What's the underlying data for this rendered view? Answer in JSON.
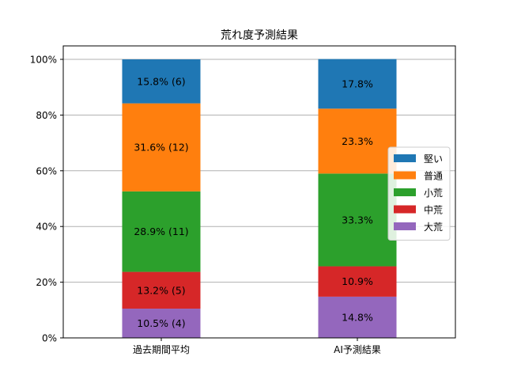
{
  "chart_data": {
    "type": "bar",
    "stacked": true,
    "title": "荒れ度予測結果",
    "xlabel": "",
    "ylabel": "",
    "ylim": [
      0,
      100
    ],
    "y_ticks": [
      "0%",
      "20%",
      "40%",
      "60%",
      "80%",
      "100%"
    ],
    "grid": "horizontal",
    "legend_position": "right",
    "categories": [
      "過去期間平均",
      "AI予測結果"
    ],
    "series": [
      {
        "name": "大荒",
        "color": "#9467bd",
        "values": [
          10.5,
          14.8
        ],
        "labels": [
          "10.5% (4)",
          "14.8%"
        ]
      },
      {
        "name": "中荒",
        "color": "#d62728",
        "values": [
          13.2,
          10.9
        ],
        "labels": [
          "13.2% (5)",
          "10.9%"
        ]
      },
      {
        "name": "小荒",
        "color": "#2ca02c",
        "values": [
          28.9,
          33.3
        ],
        "labels": [
          "28.9% (11)",
          "33.3%"
        ]
      },
      {
        "name": "普通",
        "color": "#ff7f0e",
        "values": [
          31.6,
          23.3
        ],
        "labels": [
          "31.6% (12)",
          "23.3%"
        ]
      },
      {
        "name": "堅い",
        "color": "#1f77b4",
        "values": [
          15.8,
          17.8
        ],
        "labels": [
          "15.8% (6)",
          "17.8%"
        ]
      }
    ],
    "legend_order": [
      "堅い",
      "普通",
      "小荒",
      "中荒",
      "大荒"
    ]
  }
}
